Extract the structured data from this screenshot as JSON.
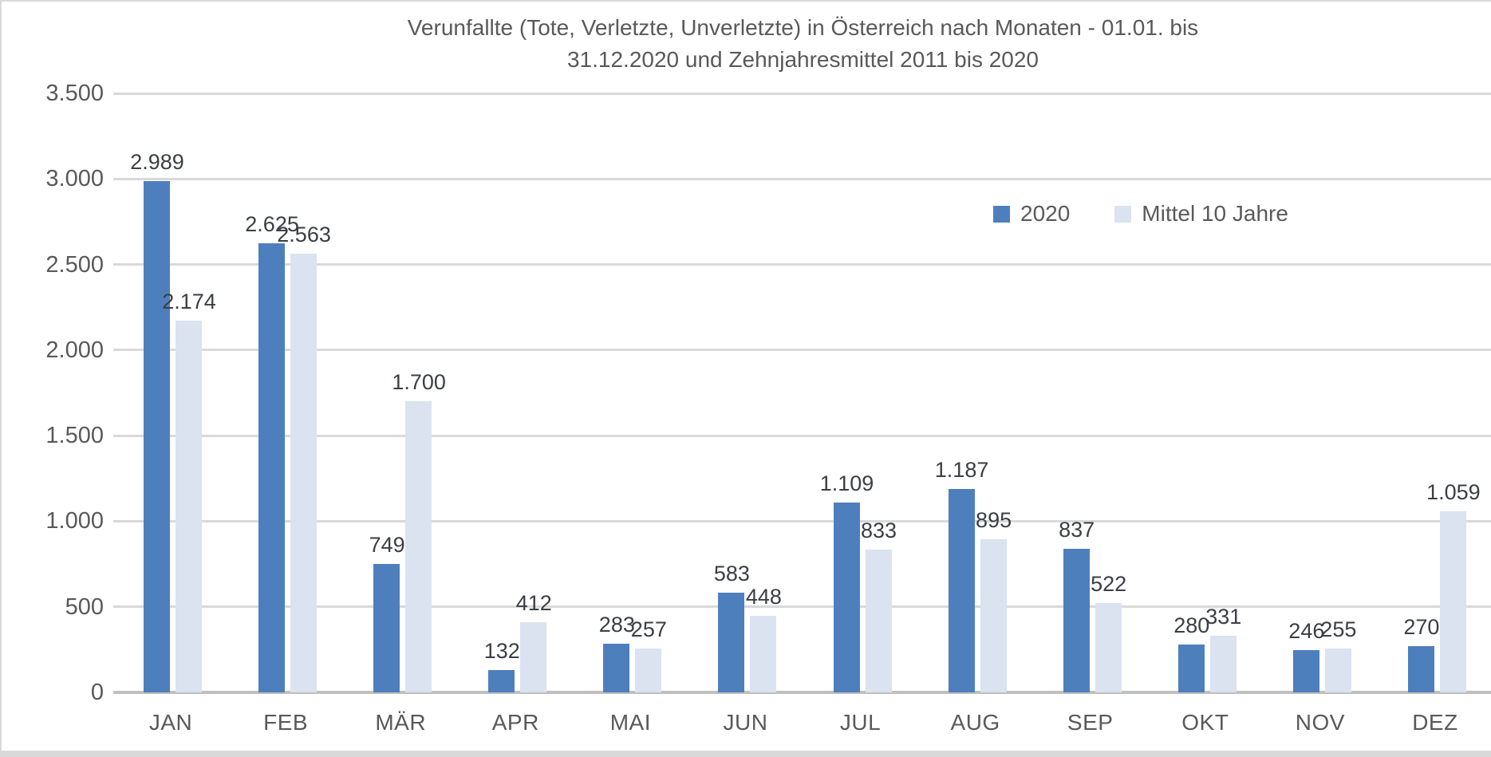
{
  "chart_data": {
    "type": "bar",
    "title": "Verunfallte (Tote, Verletzte, Unverletzte) in Österreich nach Monaten - 01.01. bis 31.12.2020 und Zehnjahresmittel 2011 bis 2020",
    "title_lines": [
      "Verunfallte (Tote, Verletzte, Unverletzte) in Österreich nach Monaten - 01.01. bis",
      "31.12.2020 und Zehnjahresmittel 2011 bis 2020"
    ],
    "categories": [
      "JAN",
      "FEB",
      "MÄR",
      "APR",
      "MAI",
      "JUN",
      "JUL",
      "AUG",
      "SEP",
      "OKT",
      "NOV",
      "DEZ"
    ],
    "series": [
      {
        "name": "2020",
        "color": "#4e7fbd",
        "values": [
          2989,
          2625,
          749,
          132,
          283,
          583,
          1109,
          1187,
          837,
          280,
          246,
          270
        ],
        "labels": [
          "2.989",
          "2.625",
          "749",
          "132",
          "283",
          "583",
          "1.109",
          "1.187",
          "837",
          "280",
          "246",
          "270"
        ]
      },
      {
        "name": "Mittel 10 Jahre",
        "color": "#dbe3f0",
        "values": [
          2174,
          2563,
          1700,
          412,
          257,
          448,
          833,
          895,
          522,
          331,
          255,
          1059
        ],
        "labels": [
          "2.174",
          "2.563",
          "1.700",
          "412",
          "257",
          "448",
          "833",
          "895",
          "522",
          "331",
          "255",
          "1.059"
        ]
      }
    ],
    "y_axis": {
      "min": 0,
      "max": 3500,
      "tick_values": [
        0,
        500,
        1000,
        1500,
        2000,
        2500,
        3000,
        3500
      ],
      "tick_labels": [
        "0",
        "500",
        "1.000",
        "1.500",
        "2.000",
        "2.500",
        "3.000",
        "3.500"
      ]
    },
    "grid": true,
    "legend_position": "top-right",
    "style_colors": {
      "gridline": "#d9d9d9",
      "axis_line": "#bfbfbf",
      "title_text": "#595959",
      "axis_text": "#595959",
      "data_label_text": "#3b3e44"
    }
  }
}
